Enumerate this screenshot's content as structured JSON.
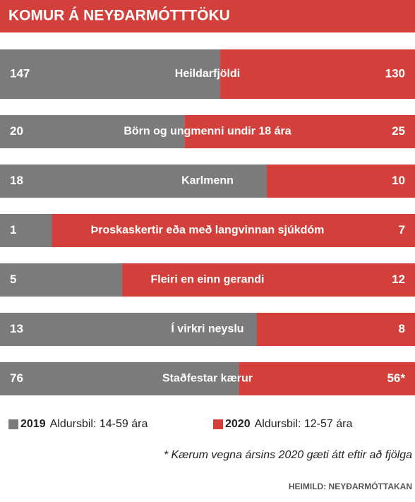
{
  "chart_data": {
    "type": "bar",
    "stacked": true,
    "normalized": true,
    "orientation": "horizontal",
    "title": "KOMUR Á NEYÐARMÓTTTÖKU",
    "categories": [
      "Heildarfjöldi",
      "Börn og ungmenni undir 18 ára",
      "Karlmenn",
      "Þroskaskertir eða með langvinnan sjúkdóm",
      "Fleiri en einn gerandi",
      "Í virkri neyslu",
      "Staðfestar kærur"
    ],
    "series": [
      {
        "name": "2019",
        "description": "Aldursbil: 14-59 ára",
        "color": "#7b7b7b",
        "values": [
          147,
          20,
          18,
          1,
          5,
          13,
          76
        ]
      },
      {
        "name": "2020",
        "description": "Aldursbil: 12-57 ára",
        "color": "#d3403b",
        "values": [
          130,
          25,
          10,
          7,
          12,
          8,
          56
        ],
        "value_labels": [
          "130",
          "25",
          "10",
          "7",
          "12",
          "8",
          "56*"
        ]
      }
    ],
    "footnote": "* Kærum vegna ársins 2020 gæti átt eftir að fjölga",
    "source": "HEIMILD: NEYÐARMÓTTAKAN"
  }
}
